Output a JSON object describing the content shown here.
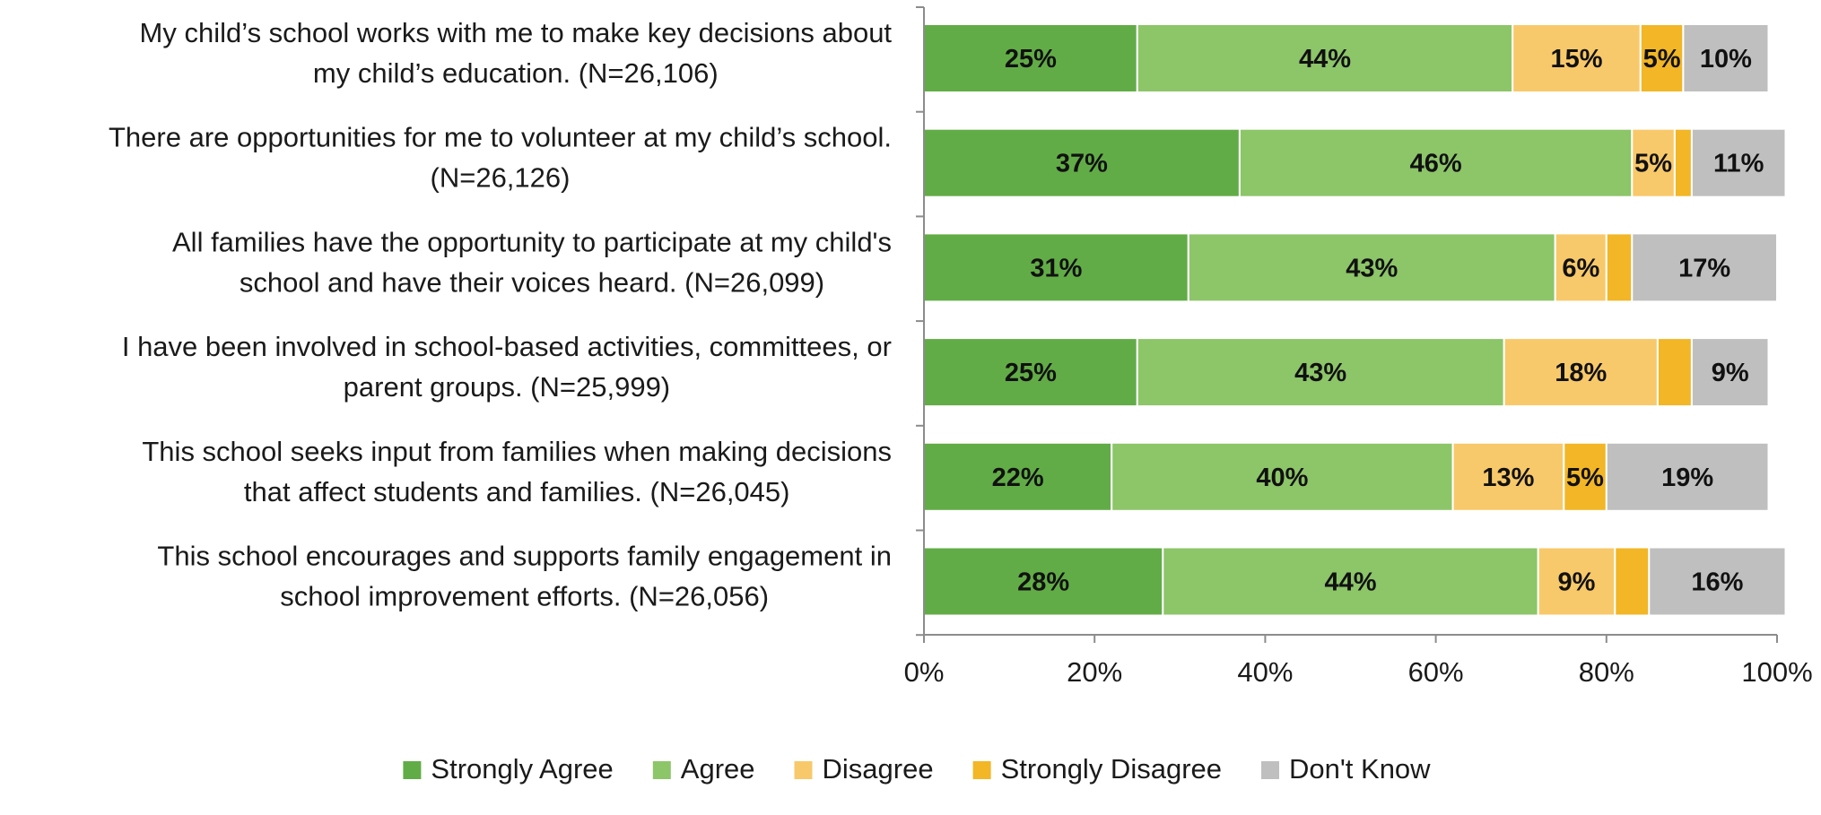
{
  "chart_data": {
    "type": "bar",
    "orientation": "horizontal",
    "stacked": true,
    "categories": [
      "My child’s school works with me to make key decisions about my child’s education. (N=26,106)",
      "There are opportunities for me to volunteer at my child’s school. (N=26,126)",
      "All families have the opportunity to participate at my child's school and have their voices heard. (N=26,099)",
      "I have been involved in school-based activities, committees, or parent groups. (N=25,999)",
      "This school seeks input from families when making decisions that affect students and families. (N=26,045)",
      "This school encourages and supports family engagement in school improvement efforts. (N=26,056)"
    ],
    "category_lines": [
      [
        "My child’s school works with me to make key decisions about",
        "my child’s education. (N=26,106)"
      ],
      [
        "There are opportunities for me to volunteer at my child’s school.",
        "(N=26,126)"
      ],
      [
        "All families have the opportunity to participate at my child's",
        "school and have their voices heard. (N=26,099)"
      ],
      [
        "I have been involved in school-based activities, committees, or",
        "parent groups. (N=25,999)"
      ],
      [
        "This school seeks input from families when making decisions",
        "that affect students and families. (N=26,045)"
      ],
      [
        "This school encourages and supports family engagement in",
        "school improvement efforts. (N=26,056)"
      ]
    ],
    "series": [
      {
        "name": "Strongly Agree",
        "color": "#62ac47",
        "values": [
          25,
          37,
          31,
          25,
          22,
          28
        ],
        "labels": [
          "25%",
          "37%",
          "31%",
          "25%",
          "22%",
          "28%"
        ]
      },
      {
        "name": "Agree",
        "color": "#8dc569",
        "values": [
          44,
          46,
          43,
          43,
          40,
          44
        ],
        "labels": [
          "44%",
          "46%",
          "43%",
          "43%",
          "40%",
          "44%"
        ]
      },
      {
        "name": "Disagree",
        "color": "#f8c96a",
        "values": [
          15,
          5,
          6,
          18,
          13,
          9
        ],
        "labels": [
          "15%",
          "5%",
          "6%",
          "18%",
          "13%",
          "9%"
        ]
      },
      {
        "name": "Strongly Disagree",
        "color": "#f2b626",
        "values": [
          5,
          2,
          3,
          4,
          5,
          4
        ],
        "labels": [
          "5%",
          "",
          "",
          "",
          "5%",
          ""
        ]
      },
      {
        "name": "Don't Know",
        "color": "#bfbfbf",
        "values": [
          10,
          11,
          17,
          9,
          19,
          16
        ],
        "labels": [
          "10%",
          "11%",
          "17%",
          "9%",
          "19%",
          "16%"
        ]
      }
    ],
    "x_ticks": [
      "0%",
      "20%",
      "40%",
      "60%",
      "80%",
      "100%"
    ],
    "xlim": [
      0,
      100
    ],
    "grid": false,
    "legend_position": "bottom"
  }
}
